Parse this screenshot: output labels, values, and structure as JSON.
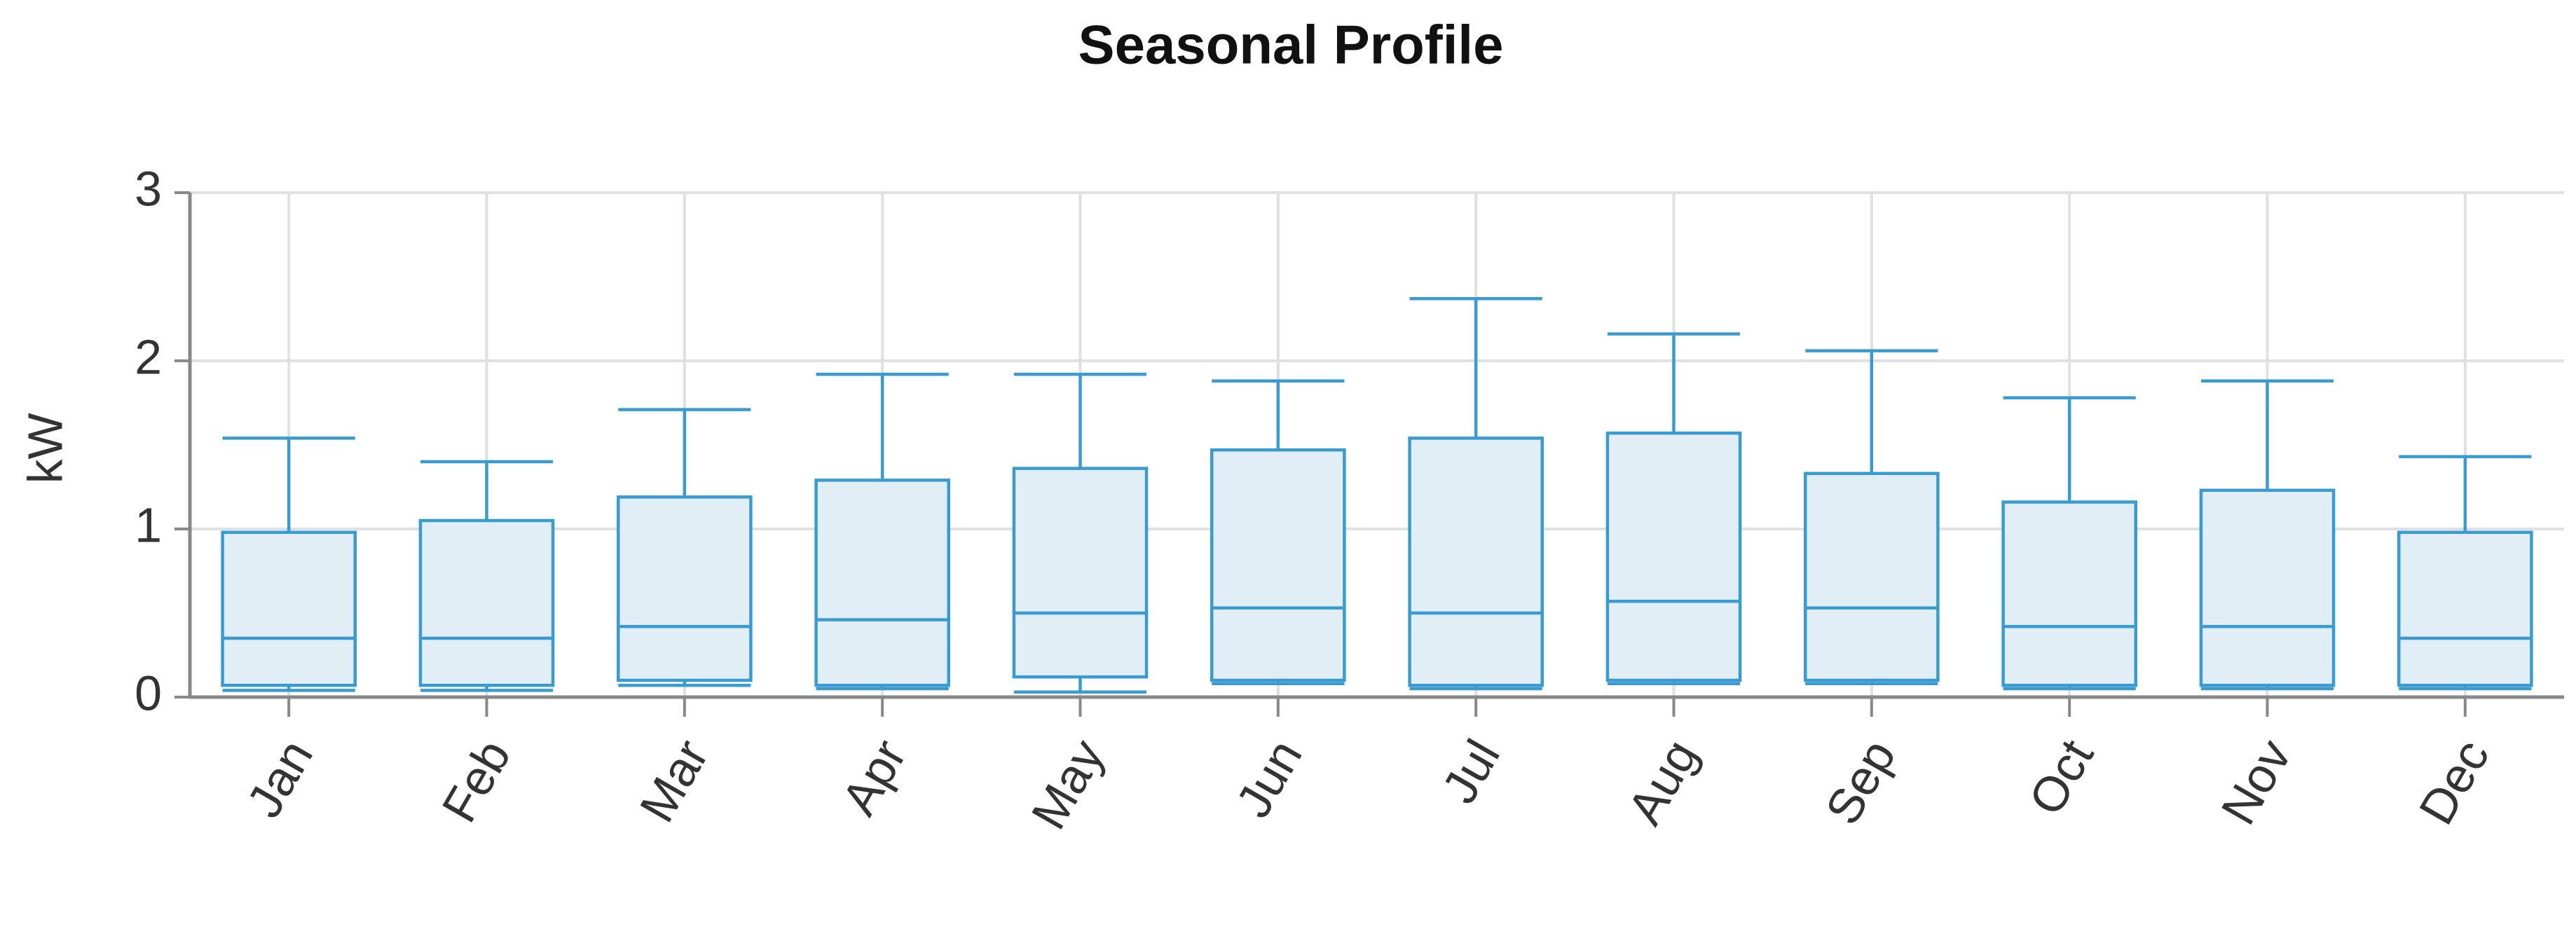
{
  "chart_data": {
    "type": "box",
    "title": "Seasonal Profile",
    "y_label": "kW",
    "categories": [
      "Jan",
      "Feb",
      "Mar",
      "Apr",
      "May",
      "Jun",
      "Jul",
      "Aug",
      "Sep",
      "Oct",
      "Nov",
      "Dec"
    ],
    "min": [
      0.04,
      0.04,
      0.07,
      0.05,
      0.03,
      0.08,
      0.05,
      0.08,
      0.08,
      0.05,
      0.05,
      0.05
    ],
    "q1": [
      0.07,
      0.07,
      0.1,
      0.07,
      0.12,
      0.1,
      0.07,
      0.1,
      0.1,
      0.07,
      0.07,
      0.07
    ],
    "median": [
      0.35,
      0.35,
      0.42,
      0.46,
      0.5,
      0.53,
      0.5,
      0.57,
      0.53,
      0.42,
      0.42,
      0.35
    ],
    "q3": [
      0.98,
      1.05,
      1.19,
      1.29,
      1.36,
      1.47,
      1.54,
      1.57,
      1.33,
      1.16,
      1.23,
      0.98
    ],
    "max": [
      1.54,
      1.4,
      1.71,
      1.92,
      1.92,
      1.88,
      2.37,
      2.16,
      2.06,
      1.78,
      1.88,
      1.43
    ],
    "ylim": [
      0,
      3
    ],
    "yticks": [
      0,
      1,
      2,
      3
    ],
    "grid": true,
    "color": "#3a9bd0",
    "fill": "#e1eef6"
  }
}
